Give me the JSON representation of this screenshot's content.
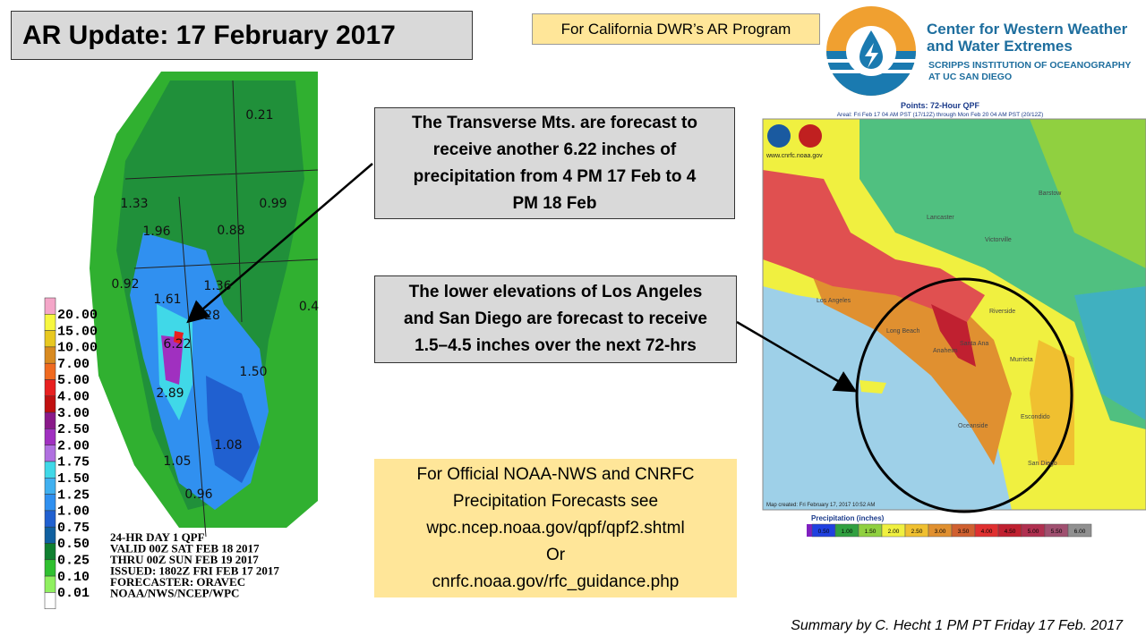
{
  "header": {
    "title": "AR Update: 17 February 2017",
    "program_note": "For California DWR’s AR Program"
  },
  "org": {
    "name_lines": [
      "Center for Western Weather",
      "and Water Extremes"
    ],
    "sub_lines": [
      "SCRIPPS INSTITUTION OF OCEANOGRAPHY",
      "AT UC SAN DIEGO"
    ]
  },
  "left_map": {
    "legend": [
      {
        "label": "20.00",
        "color": "#f4a6c8"
      },
      {
        "label": "15.00",
        "color": "#f7f740"
      },
      {
        "label": "10.00",
        "color": "#e8c820"
      },
      {
        "label": "7.00",
        "color": "#d88a20"
      },
      {
        "label": "5.00",
        "color": "#f06a20"
      },
      {
        "label": "4.00",
        "color": "#e82020"
      },
      {
        "label": "3.00",
        "color": "#c01010"
      },
      {
        "label": "2.50",
        "color": "#8a1a8a"
      },
      {
        "label": "2.00",
        "color": "#a030c0"
      },
      {
        "label": "1.75",
        "color": "#b070e0"
      },
      {
        "label": "1.50",
        "color": "#40d8e8"
      },
      {
        "label": "1.25",
        "color": "#40b0f0"
      },
      {
        "label": "1.00",
        "color": "#3090f0"
      },
      {
        "label": "0.75",
        "color": "#2060d0"
      },
      {
        "label": "0.50",
        "color": "#1060a0"
      },
      {
        "label": "0.25",
        "color": "#108030"
      },
      {
        "label": "0.10",
        "color": "#30c030"
      },
      {
        "label": "0.01",
        "color": "#90f060"
      },
      {
        "label": "",
        "color": "#ffffff"
      }
    ],
    "points": [
      "0.21",
      "1.33",
      "0.99",
      "1.96",
      "0.88",
      "0.92",
      "1.61",
      "1.36",
      "28",
      "0.4",
      "6.22",
      "1.50",
      "2.89",
      "1.08",
      "1.05",
      "0.96"
    ],
    "info_lines": [
      "24-HR DAY 1 QPF",
      "VALID 00Z SAT FEB 18 2017",
      "THRU 00Z SUN FEB 19 2017",
      "ISSUED: 1802Z FRI FEB 17 2017",
      "FORECASTER: ORAVEC",
      "NOAA/NWS/NCEP/WPC"
    ]
  },
  "right_map": {
    "title": "Points: 72-Hour QPF",
    "subtitle": "Areal: Fri Feb 17 04 AM PST (17/12Z) through Mon Feb 20 04 AM PST (20/12Z)",
    "credit": "www.cnrfc.noaa.gov",
    "created": "Map created: Fri February 17, 2017 10:52 AM",
    "places": [
      "Lancaster",
      "Victorville",
      "Barstow",
      "Los Angeles",
      "Long Beach",
      "Anaheim",
      "Santa Ana",
      "Riverside",
      "Murrieta",
      "Oceanside",
      "Escondido",
      "San Diego"
    ],
    "scale_title": "Precipitation (inches)",
    "scale": [
      {
        "label": "0.50",
        "color": "#2040e0"
      },
      {
        "label": "1.00",
        "color": "#30a040"
      },
      {
        "label": "1.50",
        "color": "#90d040"
      },
      {
        "label": "2.00",
        "color": "#f0f040"
      },
      {
        "label": "2.50",
        "color": "#f0c030"
      },
      {
        "label": "3.00",
        "color": "#e09030"
      },
      {
        "label": "3.50",
        "color": "#d06030"
      },
      {
        "label": "4.00",
        "color": "#e03030"
      },
      {
        "label": "4.50",
        "color": "#c02030"
      },
      {
        "label": "5.00",
        "color": "#b03050"
      },
      {
        "label": "5.50",
        "color": "#a05070"
      },
      {
        "label": "6.00",
        "color": "#909090"
      }
    ]
  },
  "callouts": [
    {
      "lines": [
        "The Transverse Mts. are forecast to",
        "receive another 6.22 inches of",
        "precipitation from 4 PM 17 Feb to 4",
        "PM 18 Feb"
      ]
    },
    {
      "lines": [
        "The lower elevations of Los Angeles",
        "and San Diego are forecast to receive",
        "1.5–4.5 inches over the next 72-hrs"
      ]
    }
  ],
  "official": {
    "lines": [
      "For Official NOAA-NWS and CNRFC",
      "Precipitation Forecasts see",
      "wpc.ncep.noaa.gov/qpf/qpf2.shtml",
      "Or",
      "cnrfc.noaa.gov/rfc_guidance.php"
    ]
  },
  "footer": "Summary by C. Hecht 1 PM PT Friday 17 Feb. 2017"
}
